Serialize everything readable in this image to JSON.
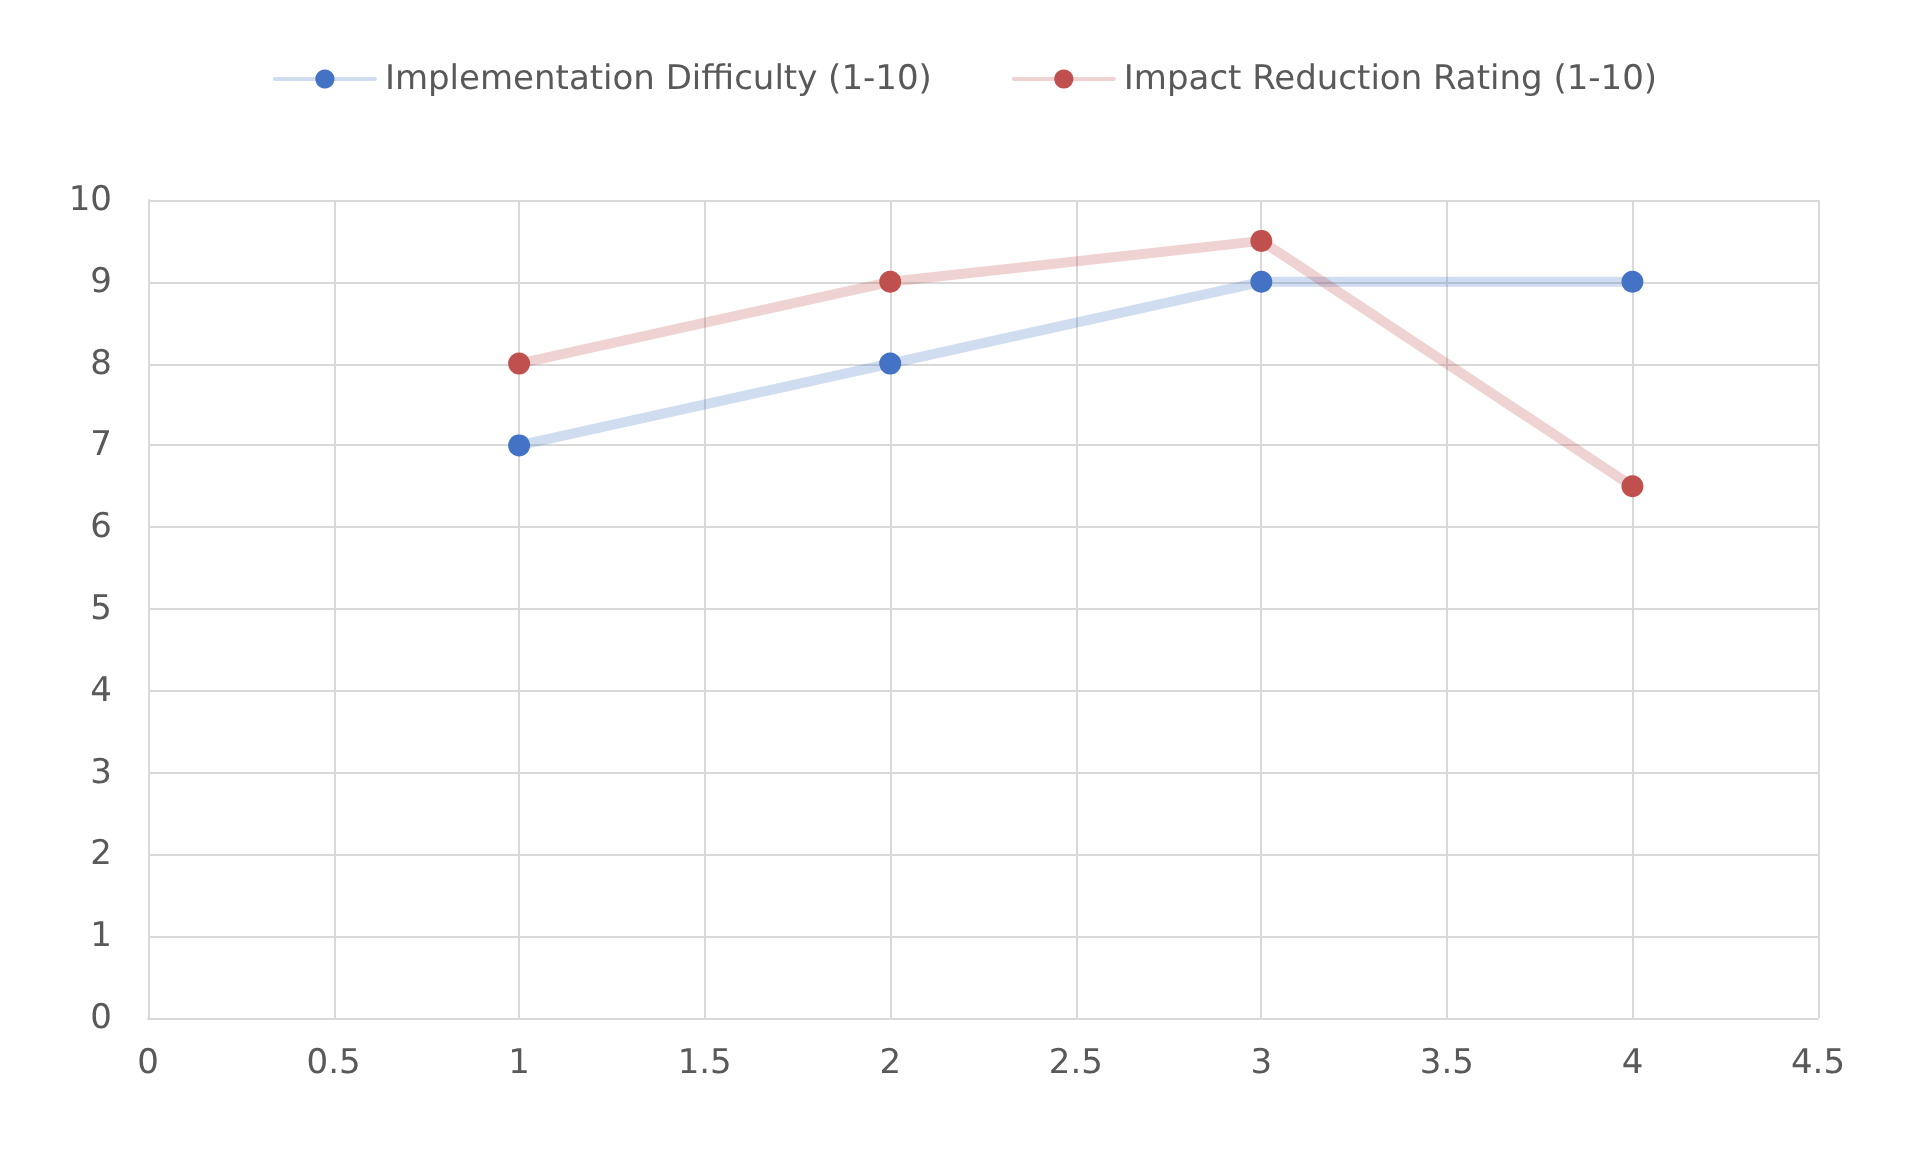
{
  "chart_data": {
    "type": "line",
    "x": [
      1,
      2,
      3,
      4
    ],
    "series": [
      {
        "name": "Implementation Difficulty (1-10)",
        "color": "#4472c4",
        "values": [
          7,
          8,
          9,
          9
        ]
      },
      {
        "name": "Impact Reduction Rating (1-10)",
        "color": "#c0504d",
        "values": [
          8,
          9,
          9.5,
          6.5
        ]
      }
    ],
    "xlim": [
      0,
      4.5
    ],
    "xticks": [
      0,
      0.5,
      1,
      1.5,
      2,
      2.5,
      3,
      3.5,
      4,
      4.5
    ],
    "ylim": [
      0,
      10
    ],
    "yticks": [
      0,
      1,
      2,
      3,
      4,
      5,
      6,
      7,
      8,
      9,
      10
    ],
    "grid": true,
    "legend": "top",
    "marker": "circle",
    "line_style": "solid"
  }
}
